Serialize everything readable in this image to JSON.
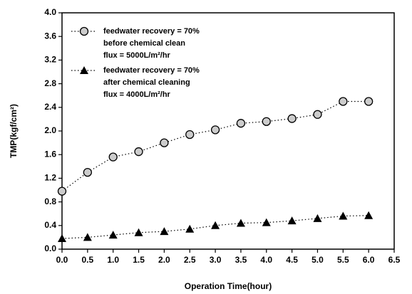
{
  "chart_data": {
    "type": "line",
    "x_label": "Operation Time(hour)",
    "y_label": "TMP(kgf/cm²)",
    "x": [
      0,
      0.5,
      1,
      1.5,
      2,
      2.5,
      3,
      3.5,
      4,
      4.5,
      5,
      5.5,
      6
    ],
    "series": [
      {
        "name": [
          "feedwater recovery = 70%",
          "before chemical clean",
          "flux = 5000L/m²/hr"
        ],
        "marker": "circle",
        "color": "#000000",
        "values": [
          0.98,
          1.3,
          1.56,
          1.65,
          1.8,
          1.94,
          2.02,
          2.13,
          2.16,
          2.21,
          2.28,
          2.5,
          2.5
        ]
      },
      {
        "name": [
          "feedwater recovery = 70%",
          "after chemical cleaning",
          "flux = 4000L/m²/hr"
        ],
        "marker": "triangle",
        "color": "#000000",
        "values": [
          0.18,
          0.2,
          0.24,
          0.28,
          0.3,
          0.34,
          0.4,
          0.44,
          0.45,
          0.48,
          0.52,
          0.56,
          0.57
        ]
      }
    ],
    "xlim": [
      0,
      6.5
    ],
    "xticks": [
      {
        "value": 0,
        "label": "0.0"
      },
      0.5,
      {
        "value": 1,
        "label": "1.0"
      },
      1.5,
      {
        "value": 2,
        "label": "2.0"
      },
      2.5,
      {
        "value": 3,
        "label": "3.0"
      },
      3.5,
      {
        "value": 4,
        "label": "4.0"
      },
      4.5,
      {
        "value": 5,
        "label": "5.0"
      },
      5.5,
      {
        "value": 6,
        "label": "6.0"
      },
      6.5
    ],
    "ylim": [
      0,
      4
    ],
    "yticks": [
      {
        "value": 0,
        "label": "0.0"
      },
      0.4,
      0.8,
      1.2,
      1.6,
      {
        "value": 2,
        "label": "2.0"
      },
      2.4,
      2.8,
      3.2,
      3.6,
      {
        "value": 4,
        "label": "4.0"
      }
    ],
    "legend": "upper-left"
  }
}
